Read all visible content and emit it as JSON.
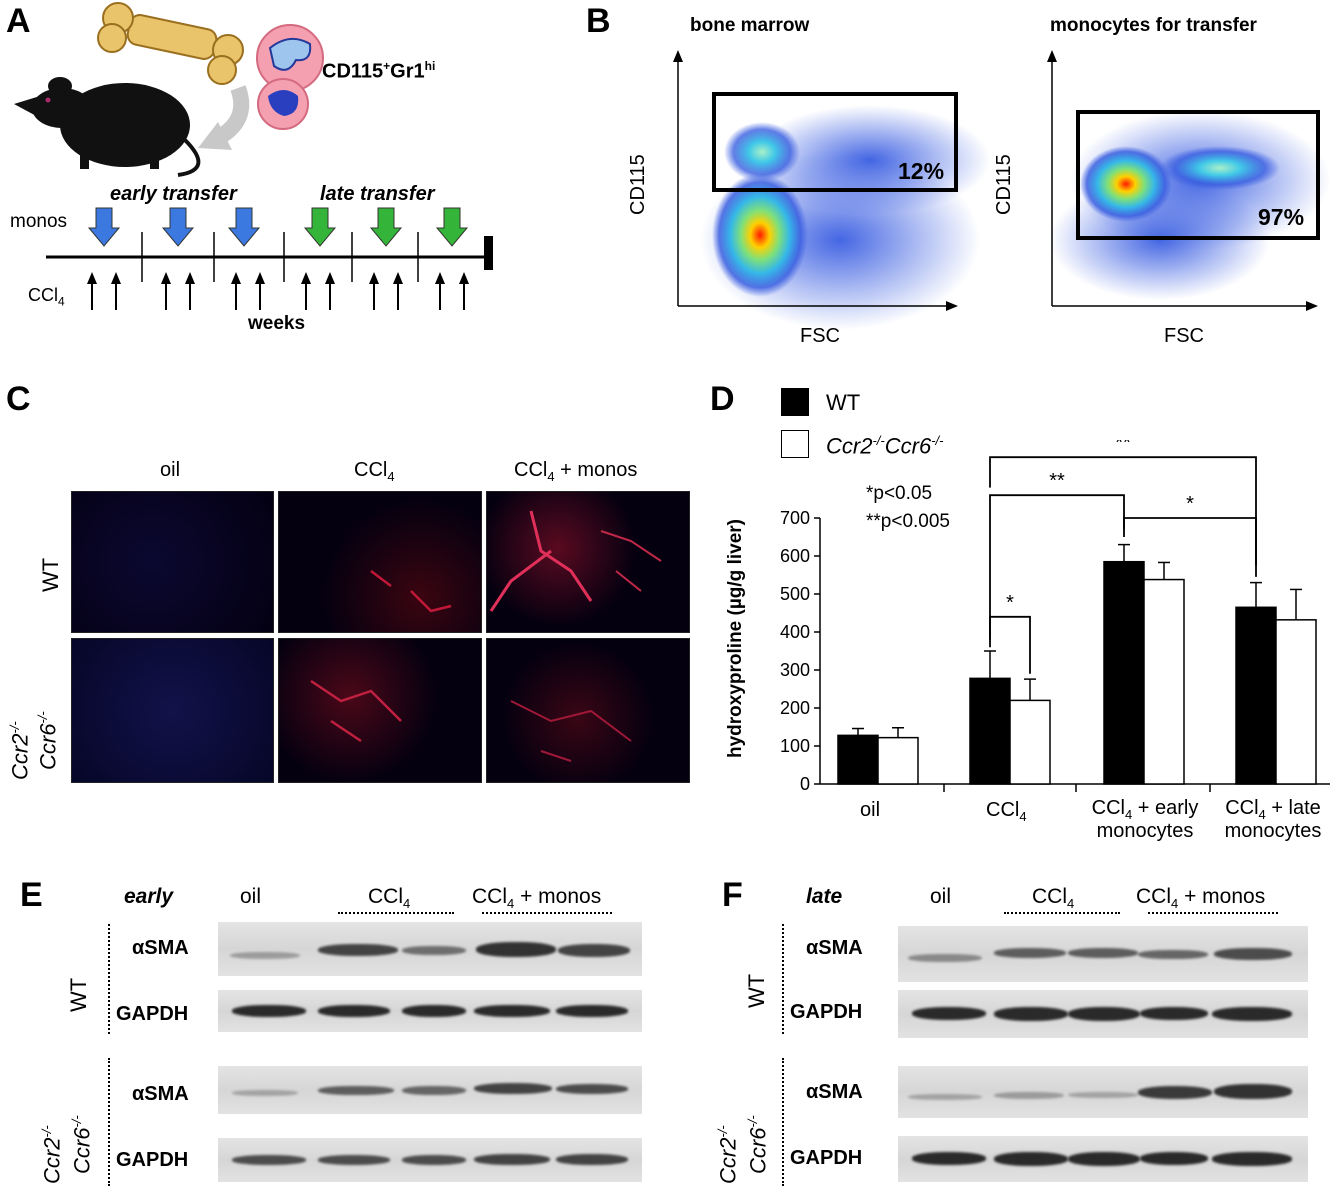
{
  "panels": {
    "a": "A",
    "b": "B",
    "c": "C",
    "d": "D",
    "e": "E",
    "f": "F"
  },
  "panel_a": {
    "marker": "CD115",
    "marker_sup": "+",
    "marker2": "Gr1",
    "marker2_sup": "hi",
    "early_label": "early transfer",
    "late_label": "late transfer",
    "monos_label": "monos",
    "ccl4_label": "CCl",
    "ccl4_sub": "4",
    "weeks_label": "weeks",
    "colors": {
      "early_arrow": "#3b78e0",
      "late_arrow": "#34b53a"
    }
  },
  "panel_b": {
    "left": {
      "title": "bone marrow",
      "percent": "12%",
      "xlabel": "FSC",
      "ylabel": "CD115"
    },
    "right": {
      "title": "monocytes for transfer",
      "percent": "97%",
      "xlabel": "FSC",
      "ylabel": "CD115"
    }
  },
  "panel_c": {
    "col_oil": "oil",
    "col_ccl4": "CCl",
    "col_ccl4_sub": "4",
    "col_ccl4m": "CCl",
    "col_ccl4m_sub": "4",
    "col_ccl4m_tail": " + monos",
    "row_wt": "WT",
    "row_ko_a": "Ccr2",
    "row_ko_a_sup": "-/-",
    "row_ko_b": "Ccr6",
    "row_ko_b_sup": "-/-"
  },
  "chart_data": {
    "type": "bar",
    "ylabel": "hydroxyproline (µg/g liver)",
    "ylim": [
      0,
      700
    ],
    "yticks": [
      0,
      100,
      200,
      300,
      400,
      500,
      600,
      700
    ],
    "categories": [
      "oil",
      "CCl4",
      "CCl4 + early monocytes",
      "CCl4 + late monocytes"
    ],
    "series": [
      {
        "name": "WT",
        "values": [
          128,
          278,
          585,
          465
        ],
        "errors": [
          18,
          72,
          45,
          65
        ],
        "color": "#000000"
      },
      {
        "name": "Ccr2-/-Ccr6-/-",
        "values": [
          122,
          220,
          538,
          432
        ],
        "errors": [
          26,
          56,
          45,
          80
        ],
        "color": "#ffffff"
      }
    ],
    "legend": {
      "wt": "WT",
      "ko_a": "Ccr2",
      "ko_a_sup": "-/-",
      "ko_b": "Ccr6",
      "ko_b_sup": "-/-"
    },
    "significance": {
      "one_star": "*",
      "two_star": "**",
      "note1": "*p<0.05",
      "note2": "**p<0.005"
    },
    "cat_labels": {
      "oil": "oil",
      "ccl4": "CCl",
      "ccl4_sub": "4",
      "early_a": "CCl",
      "early_sub": "4",
      "early_tail": " + early",
      "early_b": "monocytes",
      "late_a": "CCl",
      "late_sub": "4",
      "late_tail": " + late",
      "late_b": "monocytes"
    }
  },
  "panel_e": {
    "timing": "early",
    "col_oil": "oil",
    "col_ccl4": "CCl",
    "col_ccl4_sub": "4",
    "col_ccl4m": "CCl",
    "col_ccl4m_sub": "4",
    "col_ccl4m_tail": " + monos",
    "row_wt": "WT",
    "row_ko_a": "Ccr2",
    "row_ko_a_sup": "-/-",
    "row_ko_b": "Ccr6",
    "row_ko_b_sup": "-/-",
    "sma": "αSMA",
    "gapdh": "GAPDH"
  },
  "panel_f": {
    "timing": "late",
    "col_oil": "oil",
    "col_ccl4": "CCl",
    "col_ccl4_sub": "4",
    "col_ccl4m": "CCl",
    "col_ccl4m_sub": "4",
    "col_ccl4m_tail": " + monos",
    "row_wt": "WT",
    "row_ko_a": "Ccr2",
    "row_ko_a_sup": "-/-",
    "row_ko_b": "Ccr6",
    "row_ko_b_sup": "-/-",
    "sma": "αSMA",
    "gapdh": "GAPDH"
  }
}
